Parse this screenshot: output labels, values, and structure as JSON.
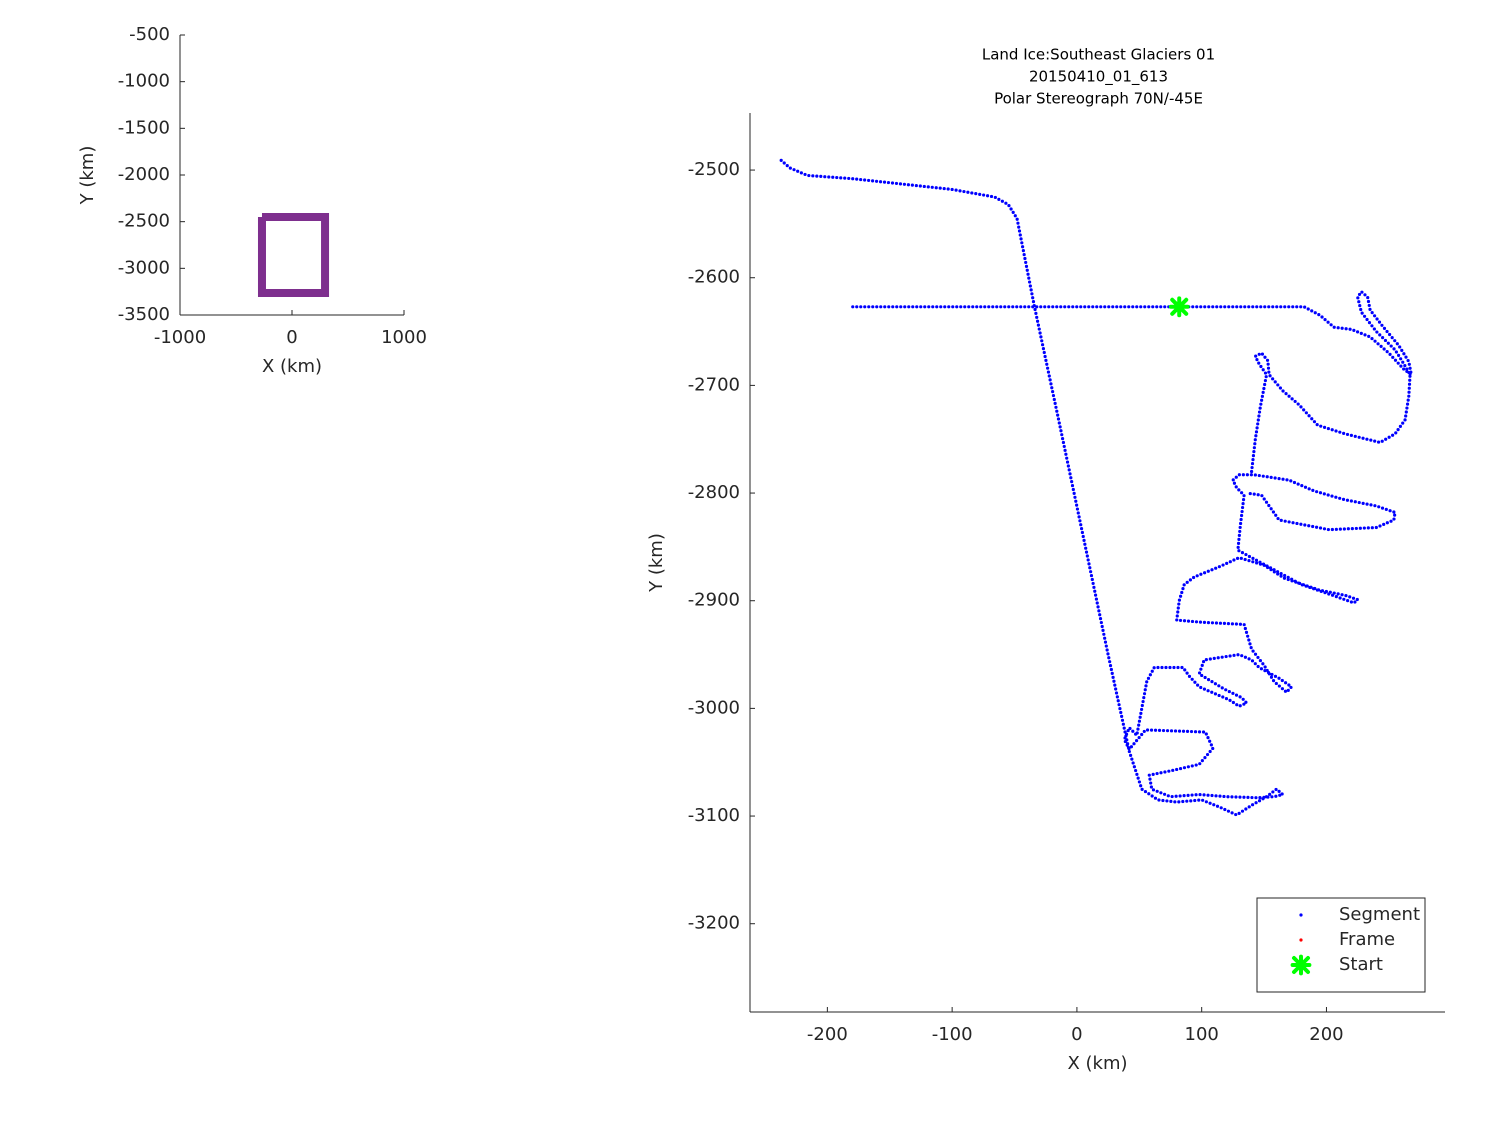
{
  "chart_data": [
    {
      "type": "line",
      "xlabel": "X (km)",
      "ylabel": "Y (km)",
      "xlim": [
        -1000,
        1000
      ],
      "ylim": [
        -3500,
        -500
      ],
      "xticks": [
        -1000,
        0,
        1000
      ],
      "yticks": [
        -500,
        -1000,
        -1500,
        -2000,
        -2500,
        -3000,
        -3500
      ],
      "series": [
        {
          "color": "#7e2f8e",
          "x": [
            -268,
            295,
            295,
            -268,
            -268
          ],
          "values": [
            -2450,
            -2450,
            -3264,
            -3264,
            -2450
          ]
        }
      ]
    },
    {
      "type": "scatter",
      "title": [
        "Land Ice:Southeast Glaciers 01",
        "20150410_01_613",
        "Polar Stereograph 70N/-45E"
      ],
      "xlabel": "X (km)",
      "ylabel": "Y (km)",
      "xlim": [
        -262,
        295
      ],
      "ylim": [
        -3282,
        -2447
      ],
      "xticks": [
        -200,
        -100,
        0,
        100,
        200
      ],
      "yticks": [
        -2500,
        -2600,
        -2700,
        -2800,
        -2900,
        -3000,
        -3100,
        -3200
      ],
      "legend": "lower right",
      "series": [
        {
          "name": "Segment",
          "color": "#0000ff",
          "marker": "dot",
          "x": [
            -237,
            -230,
            -216,
            -180,
            -140,
            -100,
            -66,
            -55,
            -48,
            -34,
            -15,
            5,
            25,
            42,
            52,
            65,
            80,
            100,
            115,
            128,
            140,
            152,
            160,
            165,
            158,
            145,
            120,
            98,
            75,
            60,
            58,
            75,
            98,
            109,
            103,
            80,
            55,
            42,
            38,
            42,
            48,
            52,
            56,
            62,
            85,
            90,
            98,
            122,
            130,
            136,
            132,
            118,
            98,
            102,
            130,
            140,
            146,
            162,
            172,
            168,
            158,
            150,
            140,
            134,
            100,
            80,
            82,
            86,
            94,
            115,
            130,
            150,
            166,
            194,
            215,
            225,
            222,
            205,
            180,
            140,
            129,
            131,
            134,
            128,
            125,
            130,
            142,
            170,
            190,
            214,
            240,
            255,
            254,
            240,
            202,
            162,
            148,
            136,
            null,
            140,
            143,
            147,
            152,
            146,
            143,
            148,
            153,
            154,
            165,
            178,
            193,
            215,
            243,
            255,
            263,
            266,
            267,
            262,
            255,
            240,
            228,
            225,
            228,
            233,
            235,
            245,
            258,
            266,
            268,
            262,
            250,
            235,
            220,
            206,
            195,
            182,
            150,
            100,
            82,
            40,
            0,
            -50,
            -100,
            -150,
            -180
          ],
          "values": [
            -2491,
            -2498,
            -2505,
            -2508,
            -2513,
            -2518,
            -2525,
            -2532,
            -2545,
            -2627,
            -2730,
            -2840,
            -2950,
            -3040,
            -3075,
            -3085,
            -3087,
            -3085,
            -3092,
            -3099,
            -3090,
            -3082,
            -3075,
            -3080,
            -3082,
            -3083,
            -3082,
            -3080,
            -3082,
            -3075,
            -3062,
            -3058,
            -3052,
            -3037,
            -3022,
            -3021,
            -3020,
            -3038,
            -3029,
            -3018,
            -3025,
            -3000,
            -2975,
            -2962,
            -2962,
            -2970,
            -2980,
            -2992,
            -2998,
            -2995,
            -2990,
            -2982,
            -2968,
            -2955,
            -2950,
            -2955,
            -2962,
            -2972,
            -2980,
            -2985,
            -2975,
            -2960,
            -2945,
            -2922,
            -2920,
            -2918,
            -2900,
            -2885,
            -2878,
            -2868,
            -2860,
            -2867,
            -2879,
            -2890,
            -2895,
            -2899,
            -2902,
            -2895,
            -2885,
            -2860,
            -2853,
            -2830,
            -2802,
            -2795,
            -2788,
            -2783,
            -2783,
            -2788,
            -2798,
            -2806,
            -2812,
            -2818,
            -2825,
            -2832,
            -2834,
            -2825,
            -2802,
            -2800,
            null,
            -2780,
            -2750,
            -2720,
            -2690,
            -2680,
            -2673,
            -2670,
            -2677,
            -2690,
            -2705,
            -2718,
            -2737,
            -2745,
            -2753,
            -2745,
            -2732,
            -2710,
            -2690,
            -2680,
            -2667,
            -2650,
            -2632,
            -2618,
            -2613,
            -2618,
            -2630,
            -2645,
            -2663,
            -2678,
            -2690,
            -2685,
            -2670,
            -2655,
            -2648,
            -2646,
            -2635,
            -2627,
            -2627,
            -2627,
            -2627,
            -2627,
            -2627,
            -2627,
            -2627,
            -2627,
            -2627
          ]
        },
        {
          "name": "Frame",
          "color": "#ff0000",
          "marker": "dot",
          "x": [],
          "values": []
        },
        {
          "name": "Start",
          "color": "#00ff00",
          "marker": "x",
          "x": [
            82
          ],
          "values": [
            -2627
          ]
        }
      ]
    }
  ]
}
